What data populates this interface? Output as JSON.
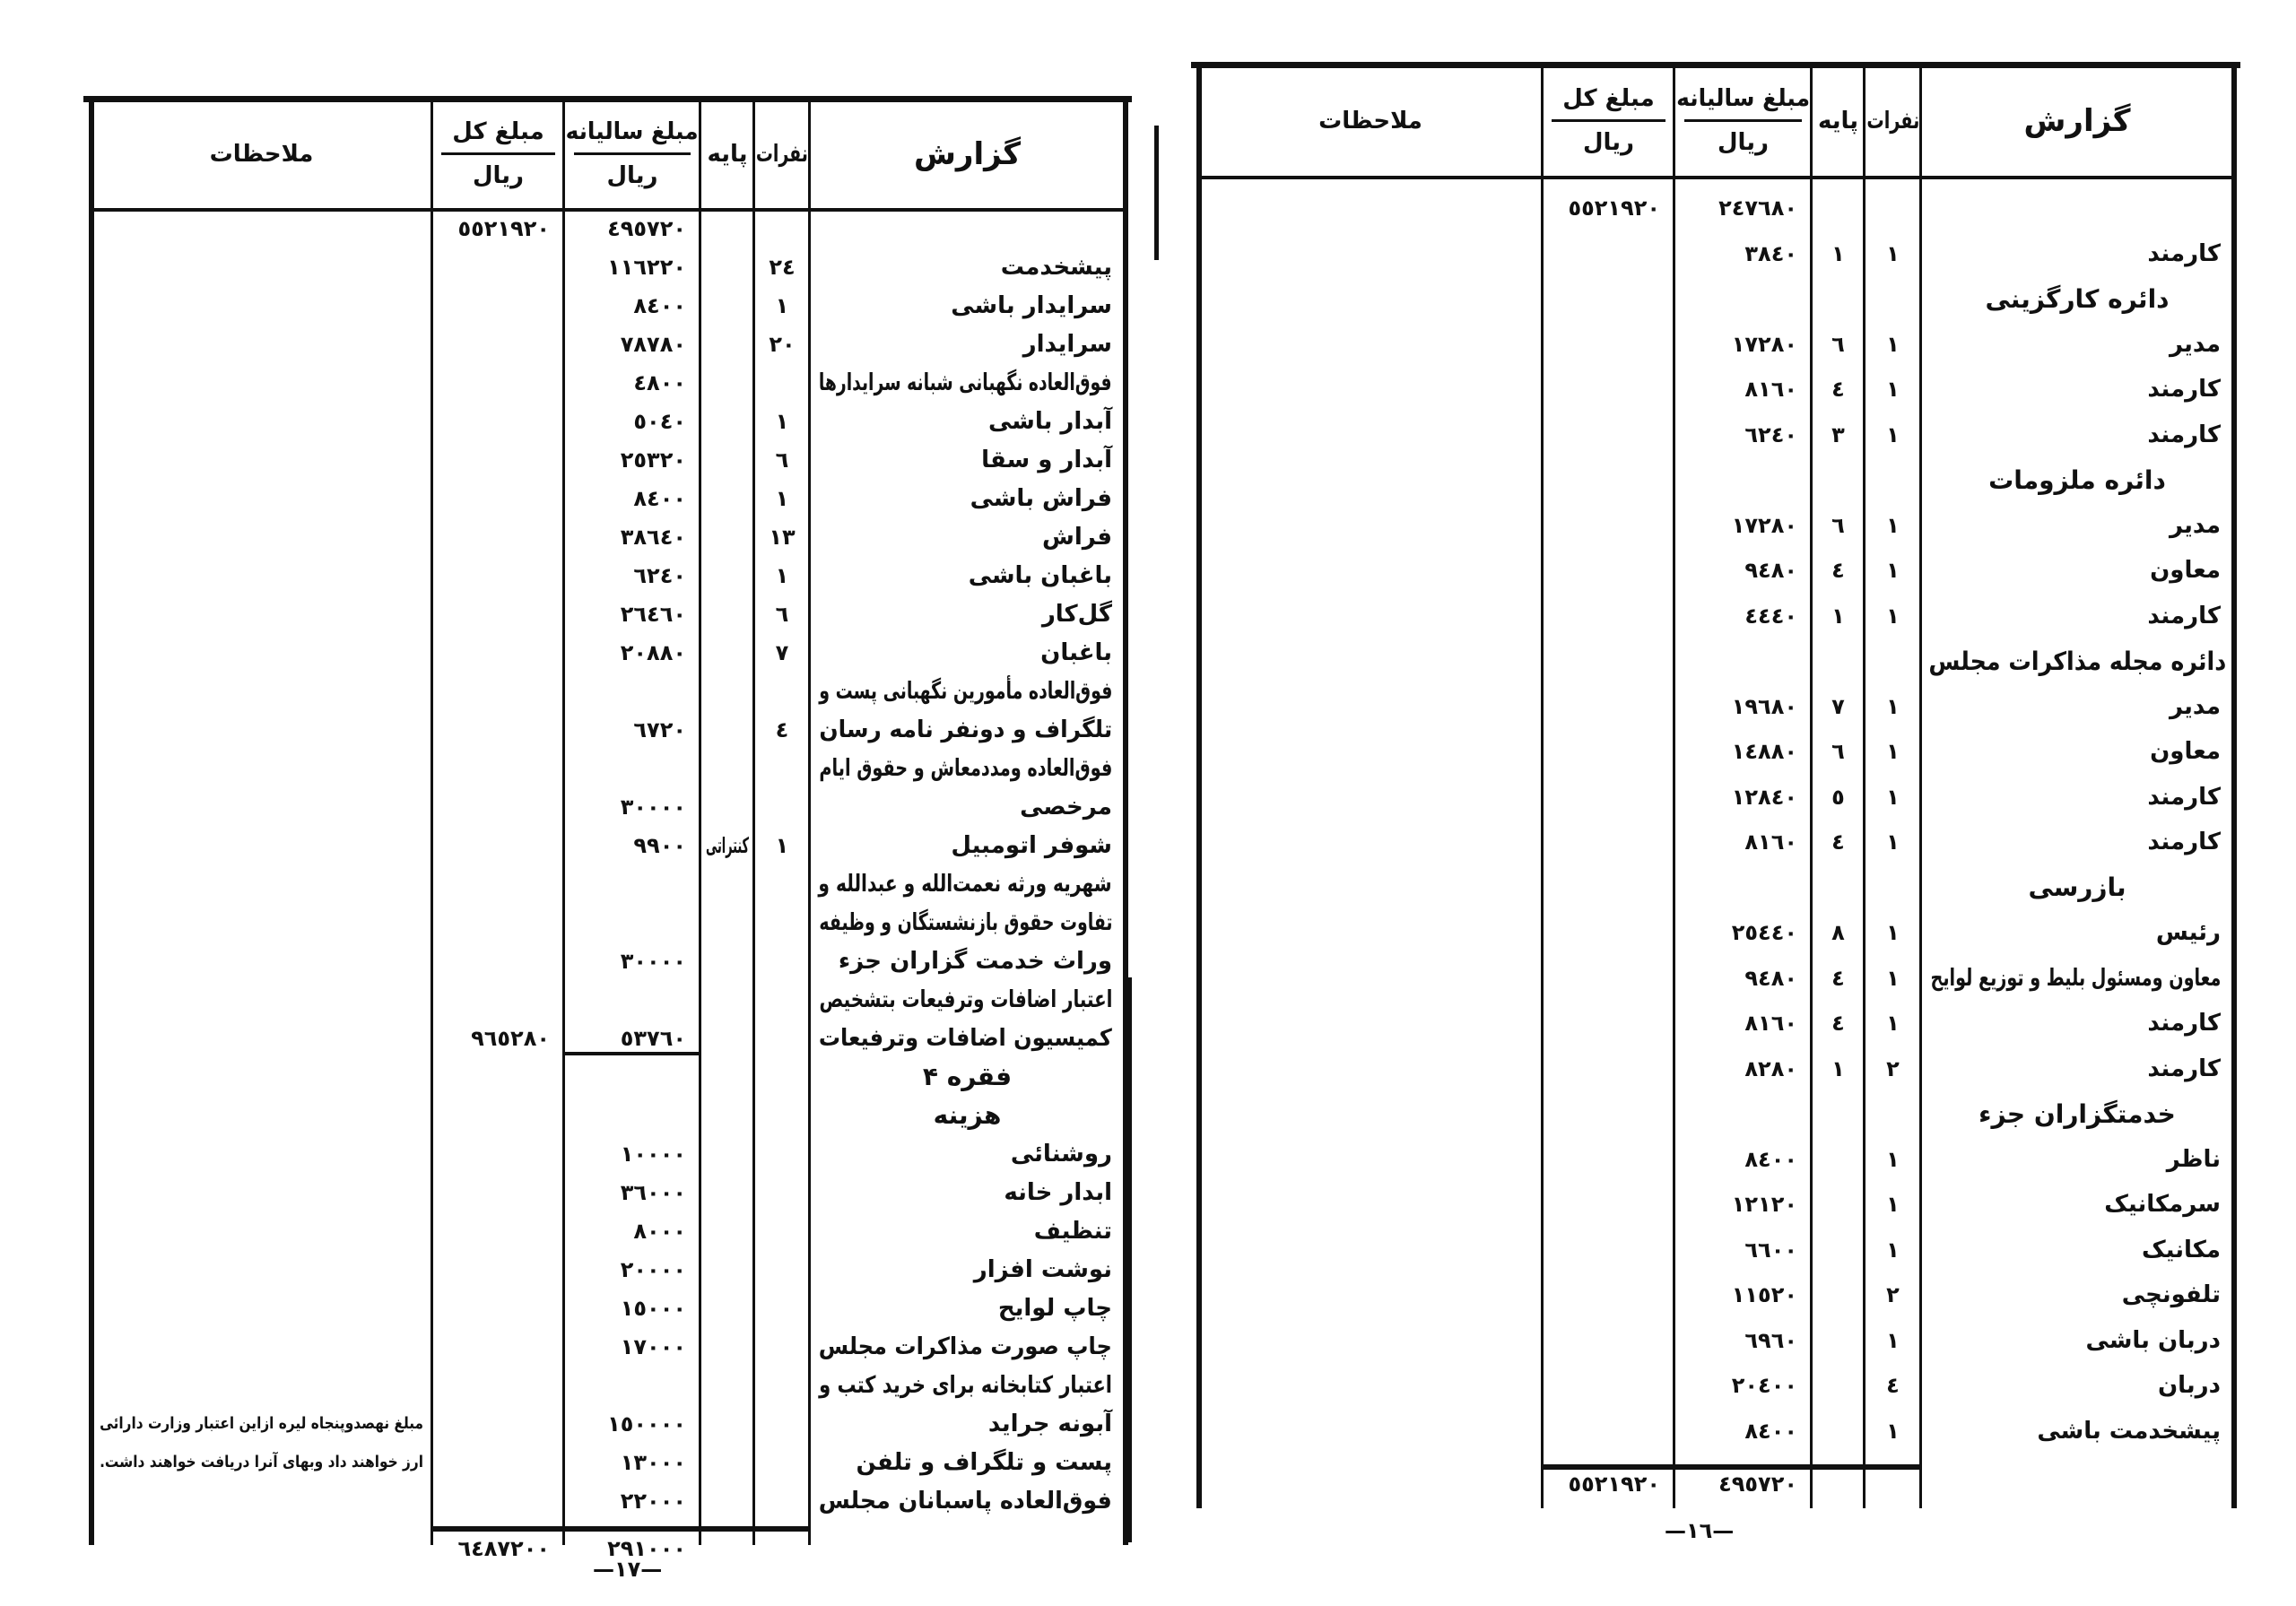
{
  "headers": {
    "description": "گزارش",
    "count": "نفرات",
    "base": "پایه",
    "annual_amount": "مبلغ سالیانه",
    "total_amount": "مبلغ کل",
    "currency": "ریال",
    "remarks": "ملاحظات"
  },
  "left_page": {
    "page_number": "—١٧—",
    "lines": [
      {
        "desc": "",
        "amount": "٤٩٥٧٢٠",
        "total": "٥٥٢١٩٢٠"
      },
      {
        "desc": "پیشخدمت",
        "count": "٢٤",
        "amount": "١١٦٢٢٠"
      },
      {
        "desc": "سرایدار باشی",
        "count": "١",
        "amount": "٨٤٠٠"
      },
      {
        "desc": "سرایدار",
        "count": "٢٠",
        "amount": "٧٨٧٨٠"
      },
      {
        "desc": "فوق‌العاده نگهبانی شبانه سرایدارها",
        "amount": "٤٨٠٠"
      },
      {
        "desc": "آبدار باشی",
        "count": "١",
        "amount": "٥٠٤٠"
      },
      {
        "desc": "آبدار و سقا",
        "count": "٦",
        "amount": "٢٥٣٢٠"
      },
      {
        "desc": "فراش باشی",
        "count": "١",
        "amount": "٨٤٠٠"
      },
      {
        "desc": "فراش",
        "count": "١٣",
        "amount": "٣٨٦٤٠"
      },
      {
        "desc": "باغبان باشی",
        "count": "١",
        "amount": "٦٢٤٠"
      },
      {
        "desc": "گل‌کار",
        "count": "٦",
        "amount": "٢٦٤٦٠"
      },
      {
        "desc": "باغبان",
        "count": "٧",
        "amount": "٢٠٨٨٠"
      },
      {
        "desc": "فوق‌العاده مأمورین نگهبانی پست و"
      },
      {
        "desc": "تلگراف و دونفر نامه رسان",
        "count": "٤",
        "amount": "٦٧٢٠"
      },
      {
        "desc": "فوق‌العاده ومددمعاش و حقوق ایام"
      },
      {
        "desc": "مرخصی",
        "amount": "٣٠٠٠٠"
      },
      {
        "desc": "شوفر اتومبیل",
        "count": "١",
        "base": "کنتراتی",
        "amount": "٩٩٠٠"
      },
      {
        "desc": "شهریه ورثه نعمت‌الله و عبدالله و"
      },
      {
        "desc": "تفاوت حقوق بازنشستگان و وظیفه"
      },
      {
        "desc": "وراث خدمت گزاران جزء",
        "amount": "٣٠٠٠٠"
      },
      {
        "desc": "اعتبار اضافات وترفیعات بتشخیص"
      },
      {
        "desc": "کمیسیون اضافات وترفیعات",
        "amount": "٥٣٧٦٠",
        "total": "٩٦٥٢٨٠"
      },
      {
        "desc": "فقره ۴",
        "heading": true
      },
      {
        "desc": "هزینه",
        "heading": true
      },
      {
        "desc": "روشنائی",
        "amount": "١٠٠٠٠"
      },
      {
        "desc": "ابدار خانه",
        "amount": "٣٦٠٠٠"
      },
      {
        "desc": "تنظیف",
        "amount": "٨٠٠٠"
      },
      {
        "desc": "نوشت افزار",
        "amount": "٢٠٠٠٠"
      },
      {
        "desc": "چاپ لوایح",
        "amount": "١٥٠٠٠"
      },
      {
        "desc": "چاپ صورت مذاکرات مجلس",
        "amount": "١٧٠٠٠"
      },
      {
        "desc": "اعتبار کتابخانه برای خرید کتب و"
      },
      {
        "desc": "آبونه جراید",
        "amount": "١٥٠٠٠٠",
        "remark": "مبلغ نهصدوپنجاه لیره ازاین اعتبار وزارت دارائی"
      },
      {
        "desc": "پست و تلگراف و تلفن",
        "amount": "١٣٠٠٠",
        "remark": "ارز خواهند داد وبهای آنرا دریافت خواهند داشت."
      },
      {
        "desc": "فوق‌العاده پاسبانان مجلس",
        "amount": "٢٢٠٠٠"
      }
    ],
    "footer": {
      "amount": "٢٩١٠٠٠",
      "total": "٦٤٨٧٢٠٠"
    }
  },
  "right_page": {
    "page_number": "—١٦—",
    "lines": [
      {
        "desc": "",
        "amount": "٢٤٧٦٨٠",
        "total": "٥٥٢١٩٢٠"
      },
      {
        "desc": "کارمند",
        "count": "١",
        "base": "١",
        "amount": "٣٨٤٠"
      },
      {
        "desc": "دائره کارگزینی",
        "heading": true
      },
      {
        "desc": "مدیر",
        "count": "١",
        "base": "٦",
        "amount": "١٧٢٨٠"
      },
      {
        "desc": "کارمند",
        "count": "١",
        "base": "٤",
        "amount": "٨١٦٠"
      },
      {
        "desc": "کارمند",
        "count": "١",
        "base": "٣",
        "amount": "٦٢٤٠"
      },
      {
        "desc": "دائره ملزومات",
        "heading": true
      },
      {
        "desc": "مدیر",
        "count": "١",
        "base": "٦",
        "amount": "١٧٢٨٠"
      },
      {
        "desc": "معاون",
        "count": "١",
        "base": "٤",
        "amount": "٩٤٨٠"
      },
      {
        "desc": "کارمند",
        "count": "١",
        "base": "١",
        "amount": "٤٤٤٠"
      },
      {
        "desc": "دائره مجله مذاکرات مجلس",
        "heading": true
      },
      {
        "desc": "مدیر",
        "count": "١",
        "base": "٧",
        "amount": "١٩٦٨٠"
      },
      {
        "desc": "معاون",
        "count": "١",
        "base": "٦",
        "amount": "١٤٨٨٠"
      },
      {
        "desc": "کارمند",
        "count": "١",
        "base": "٥",
        "amount": "١٢٨٤٠"
      },
      {
        "desc": "کارمند",
        "count": "١",
        "base": "٤",
        "amount": "٨١٦٠"
      },
      {
        "desc": "بازرسی",
        "heading": true
      },
      {
        "desc": "رئیس",
        "count": "١",
        "base": "٨",
        "amount": "٢٥٤٤٠"
      },
      {
        "desc": "معاون ومسئول بلیط و توزیع لوایح",
        "count": "١",
        "base": "٤",
        "amount": "٩٤٨٠"
      },
      {
        "desc": "کارمند",
        "count": "١",
        "base": "٤",
        "amount": "٨١٦٠"
      },
      {
        "desc": "کارمند",
        "count": "٢",
        "base": "١",
        "amount": "٨٢٨٠"
      },
      {
        "desc": "خدمتگزاران جزء",
        "heading": true
      },
      {
        "desc": "ناظر",
        "count": "١",
        "amount": "٨٤٠٠"
      },
      {
        "desc": "سرمکانیک",
        "count": "١",
        "amount": "١٢١٢٠"
      },
      {
        "desc": "مکانیک",
        "count": "١",
        "amount": "٦٦٠٠"
      },
      {
        "desc": "تلفونچی",
        "count": "٢",
        "amount": "١١٥٢٠"
      },
      {
        "desc": "دربان باشی",
        "count": "١",
        "amount": "٦٩٦٠"
      },
      {
        "desc": "دربان",
        "count": "٤",
        "amount": "٢٠٤٠٠"
      },
      {
        "desc": "پیشخدمت باشی",
        "count": "١",
        "amount": "٨٤٠٠"
      }
    ],
    "footer": {
      "amount": "٤٩٥٧٢٠",
      "total": "٥٥٢١٩٢٠"
    }
  }
}
